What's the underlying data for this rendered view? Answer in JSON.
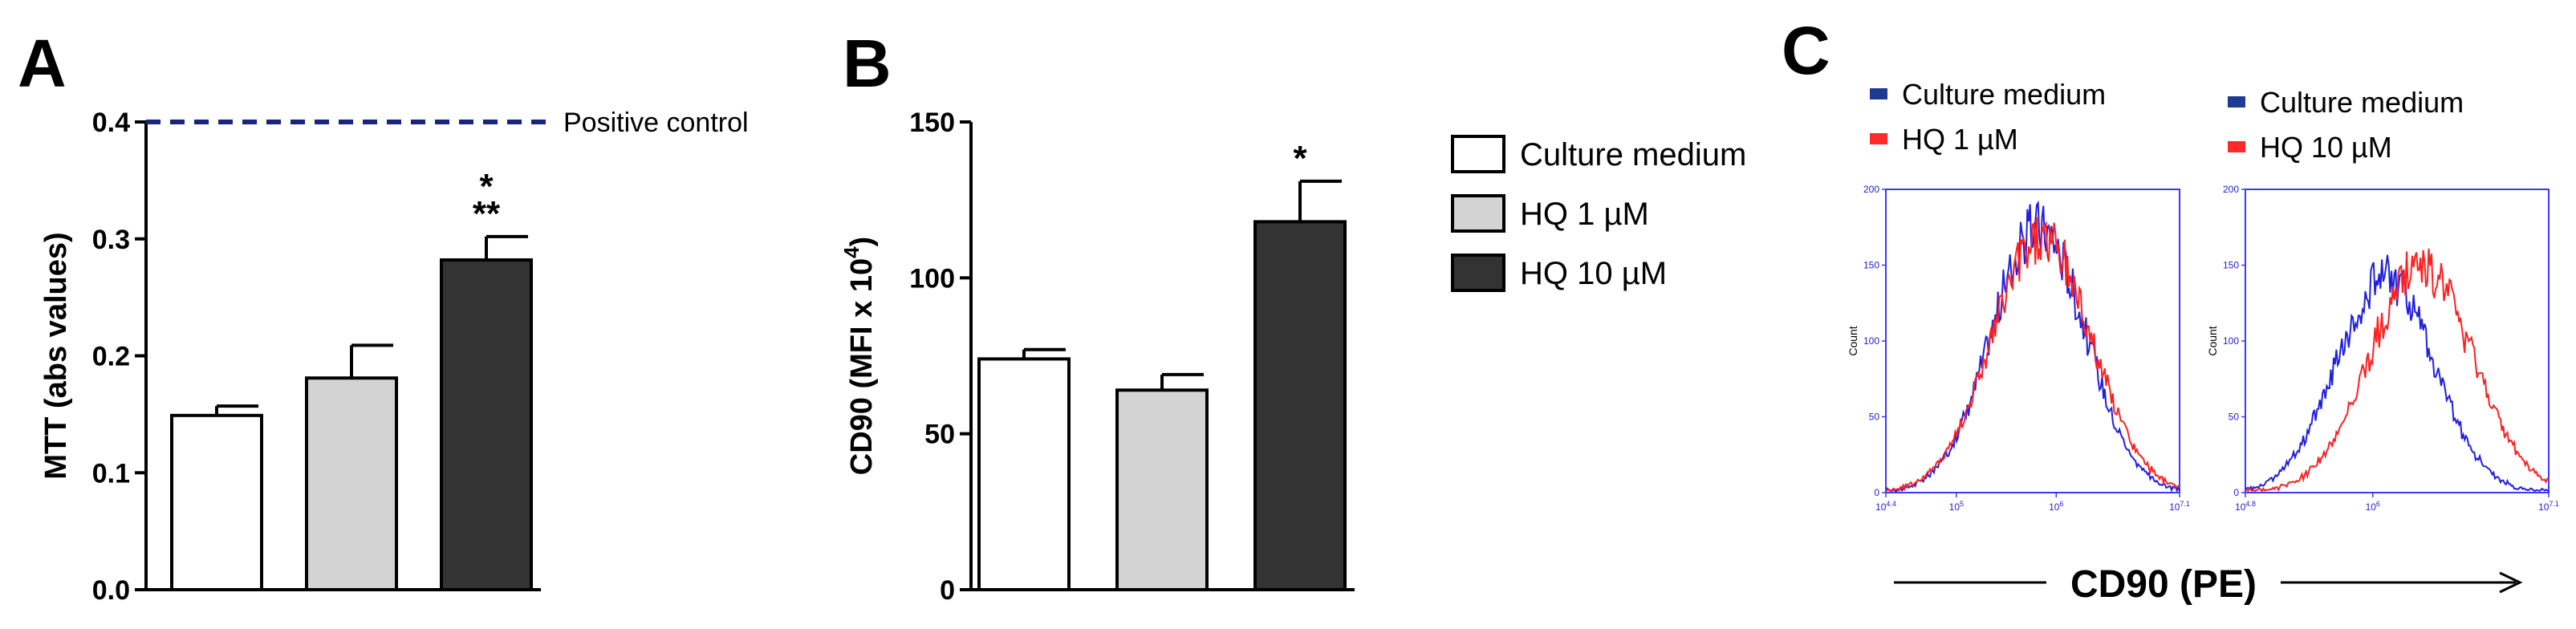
{
  "panels": {
    "a": "A",
    "b": "B",
    "c": "C"
  },
  "legend": {
    "items": [
      {
        "label": "Culture medium",
        "color": "#ffffff"
      },
      {
        "label": "HQ 1 µM",
        "color": "#d3d3d3"
      },
      {
        "label": "HQ 10 µM",
        "color": "#333333"
      }
    ]
  },
  "chart_data": [
    {
      "id": "A",
      "type": "bar",
      "categories": [
        "Culture medium",
        "HQ 1 µM",
        "HQ 10 µM"
      ],
      "values": [
        0.149,
        0.181,
        0.282
      ],
      "errors": [
        0.008,
        0.028,
        0.02
      ],
      "colors": [
        "#ffffff",
        "#d3d3d3",
        "#333333"
      ],
      "ylabel": "MTT (abs values)",
      "ylim": [
        0.0,
        0.4
      ],
      "yticks": [
        "0.0",
        "0.1",
        "0.2",
        "0.3",
        "0.4"
      ],
      "reference_line": {
        "value": 0.4,
        "label": "Positive control",
        "color": "#1a237e"
      },
      "annotations": [
        {
          "category": "HQ 10 µM",
          "lines": [
            "*",
            "**"
          ]
        }
      ]
    },
    {
      "id": "B",
      "type": "bar",
      "categories": [
        "Culture medium",
        "HQ 1 µM",
        "HQ 10 µM"
      ],
      "values": [
        74,
        64,
        118
      ],
      "errors": [
        3,
        5,
        13
      ],
      "colors": [
        "#ffffff",
        "#d3d3d3",
        "#333333"
      ],
      "ylabel": "CD90 (MFI x 10",
      "ylabel_sup": "4",
      "ylabel_end": ")",
      "ylim": [
        0,
        150
      ],
      "yticks": [
        "0",
        "50",
        "100",
        "150"
      ],
      "annotations": [
        {
          "category": "HQ 10 µM",
          "lines": [
            "*"
          ]
        }
      ]
    },
    {
      "id": "C",
      "type": "histogram",
      "xlabel": "CD90 (PE)",
      "ylabel": "Count",
      "plots": [
        {
          "legend": [
            {
              "name": "Culture medium",
              "color": "#1f3a93"
            },
            {
              "name": "HQ 1 µM",
              "color": "#ff2a2a"
            }
          ],
          "xticks": [
            "10^4.4",
            "10^5",
            "10^6",
            "10^7.1"
          ],
          "yticks": [
            "0",
            "50",
            "100",
            "150",
            "200"
          ],
          "series": [
            {
              "name": "Culture medium",
              "color": "#2020e0",
              "center": 0.52,
              "width": 0.16,
              "peak": 175
            },
            {
              "name": "HQ 1 µM",
              "color": "#ff2020",
              "center": 0.53,
              "width": 0.17,
              "peak": 168
            }
          ]
        },
        {
          "legend": [
            {
              "name": "Culture medium",
              "color": "#1f3a93"
            },
            {
              "name": "HQ 10 µM",
              "color": "#ff2a2a"
            }
          ],
          "xticks": [
            "10^4.8",
            "10^6",
            "10^7.1"
          ],
          "yticks": [
            "0",
            "50",
            "100",
            "150",
            "200"
          ],
          "series": [
            {
              "name": "Culture medium",
              "color": "#2020e0",
              "center": 0.46,
              "width": 0.16,
              "peak": 142
            },
            {
              "name": "HQ 10 µM",
              "color": "#ff2020",
              "center": 0.58,
              "width": 0.17,
              "peak": 148
            }
          ]
        }
      ]
    }
  ]
}
